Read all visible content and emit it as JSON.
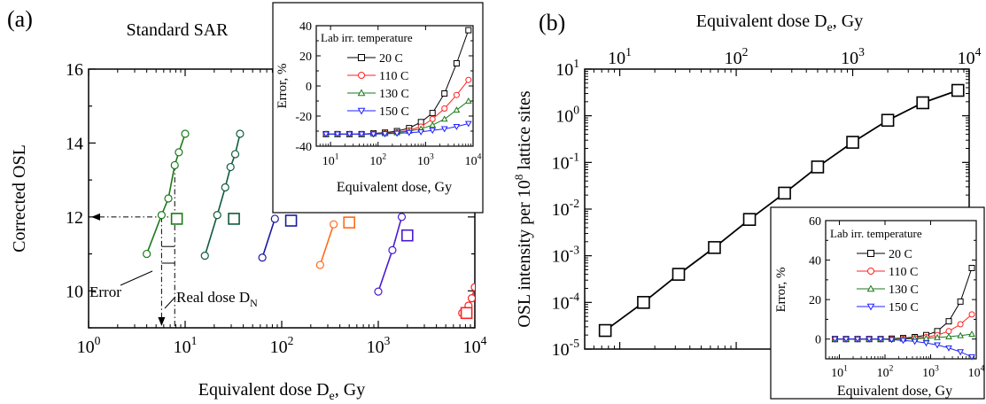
{
  "panel_a": {
    "label": "(a)",
    "title": "Standard SAR",
    "xlabel": "Equivalent dose D",
    "xlabel_sub": "e",
    "xlabel_unit": ", Gy",
    "ylabel": "Corrected OSL",
    "annotations": {
      "error": "Error",
      "real_dose": "Real dose D",
      "real_dose_sub": "N"
    }
  },
  "panel_b": {
    "label": "(b)",
    "top_xlabel": "Equivalent dose D",
    "top_xlabel_sub": "e",
    "top_xlabel_unit": ", Gy",
    "ylabel_pre": "OSL intensity per 10",
    "ylabel_sup": "8",
    "ylabel_post": " lattice sites"
  },
  "inset_a": {
    "legend_title": "Lab irr. temperature",
    "xlabel": "Equivalent dose, Gy",
    "ylabel": "Error, %"
  },
  "inset_b": {
    "legend_title": "Lab irr. temperature",
    "xlabel": "Equivalent dose, Gy",
    "ylabel": "Error, %"
  },
  "colors": {
    "20 C": "#000000",
    "110 C": "#ff2020",
    "130 C": "#1a7a1a",
    "150 C": "#2020ff",
    "dark_green": "#0f5a3c",
    "navy": "#1a1aa0",
    "orange": "#ff6a1a",
    "violet": "#4a1ad0",
    "red": "#ff2020"
  },
  "chart_data": [
    {
      "id": "a",
      "type": "line",
      "title": "Standard SAR",
      "xlabel": "Equivalent dose De, Gy",
      "ylabel": "Corrected OSL",
      "xscale": "log",
      "xlim": [
        1,
        10000
      ],
      "ylim": [
        9,
        16
      ],
      "xticks": [
        1,
        10,
        100,
        1000,
        10000
      ],
      "yticks": [
        10,
        12,
        14,
        16
      ],
      "series": [
        {
          "color": "#1a7a1a",
          "x": [
            4,
            5.7,
            6.7,
            7.8,
            8.6,
            10
          ],
          "y": [
            11.0,
            12.05,
            12.5,
            13.4,
            13.75,
            14.25
          ]
        },
        {
          "color": "#0f5a3c",
          "x": [
            16,
            21.5,
            26,
            29.5,
            33,
            37
          ],
          "y": [
            10.95,
            12.05,
            12.8,
            13.35,
            13.7,
            14.25
          ]
        },
        {
          "color": "#1a1aa0",
          "x": [
            63,
            85
          ],
          "y": [
            10.9,
            11.95
          ]
        },
        {
          "color": "#ff6a1a",
          "x": [
            250,
            345
          ],
          "y": [
            10.7,
            11.8
          ]
        },
        {
          "color": "#4a1ad0",
          "x": [
            1000,
            1400,
            1750
          ],
          "y": [
            9.98,
            11.1,
            12.0
          ]
        },
        {
          "color": "#ff2020",
          "x": [
            7400,
            8600,
            9300,
            10000
          ],
          "y": [
            9.4,
            9.6,
            9.8,
            10.1
          ]
        }
      ],
      "squares": [
        {
          "color": "#1a7a1a",
          "x": 8.2,
          "y": 11.95
        },
        {
          "color": "#0f5a3c",
          "x": 32,
          "y": 11.95
        },
        {
          "color": "#1a1aa0",
          "x": 125,
          "y": 11.9
        },
        {
          "color": "#ff6a1a",
          "x": 500,
          "y": 11.85
        },
        {
          "color": "#4a1ad0",
          "x": 2000,
          "y": 11.5
        },
        {
          "color": "#ff2020",
          "x": 8200,
          "y": 9.4
        }
      ],
      "guides": {
        "y_level": 12.0,
        "x_measured": 5.7,
        "x_real": 7.8,
        "bracket_y_top": 11.2,
        "bracket_y_bottom": 10.75
      }
    },
    {
      "id": "a-inset",
      "type": "line",
      "xlabel": "Equivalent dose, Gy",
      "ylabel": "Error, %",
      "xscale": "log",
      "xlim": [
        5,
        10000
      ],
      "ylim": [
        -40,
        40
      ],
      "xticks": [
        10,
        100,
        1000,
        10000
      ],
      "yticks": [
        -40,
        -30,
        -20,
        -10,
        0,
        10,
        20,
        30,
        40
      ],
      "legend": "top-left",
      "series": [
        {
          "name": "20 C",
          "marker": "square",
          "x": [
            8,
            14,
            25,
            45,
            80,
            140,
            250,
            450,
            800,
            1400,
            2500,
            4500,
            8000
          ],
          "y": [
            -32,
            -32,
            -32,
            -32,
            -31.5,
            -31,
            -30,
            -28,
            -24,
            -18,
            -5,
            15,
            37
          ]
        },
        {
          "name": "110 C",
          "marker": "circle",
          "x": [
            8,
            14,
            25,
            45,
            80,
            140,
            250,
            450,
            800,
            1400,
            2500,
            4500,
            8000
          ],
          "y": [
            -32,
            -32,
            -32,
            -32,
            -31.8,
            -31.5,
            -30.8,
            -29.5,
            -27,
            -22,
            -15,
            -6,
            4
          ]
        },
        {
          "name": "130 C",
          "marker": "triangle-up",
          "x": [
            8,
            14,
            25,
            45,
            80,
            140,
            250,
            450,
            800,
            1400,
            2500,
            4500,
            8000
          ],
          "y": [
            -32,
            -32,
            -32,
            -32,
            -31.8,
            -31.6,
            -31,
            -30,
            -28.5,
            -26,
            -22,
            -16,
            -10
          ]
        },
        {
          "name": "150 C",
          "marker": "triangle-down",
          "x": [
            8,
            14,
            25,
            45,
            80,
            140,
            250,
            450,
            800,
            1400,
            2500,
            4500,
            8000
          ],
          "y": [
            -32,
            -32,
            -32,
            -32,
            -32,
            -31.8,
            -31.5,
            -31,
            -30.5,
            -29.5,
            -28.5,
            -27,
            -25
          ]
        }
      ]
    },
    {
      "id": "b",
      "type": "line",
      "xlabel": "Equivalent dose De, Gy",
      "ylabel": "OSL intensity per 10^8 lattice sites",
      "xscale": "log",
      "yscale": "log",
      "xlim": [
        5,
        10000
      ],
      "ylim": [
        1e-05,
        10
      ],
      "xticks": [
        10,
        100,
        1000,
        10000
      ],
      "yticks": [
        1e-05,
        0.0001,
        0.001,
        0.01,
        0.1,
        1,
        10
      ],
      "series": [
        {
          "marker": "square",
          "x": [
            7.5,
            16,
            32,
            65,
            130,
            260,
            500,
            1000,
            2000,
            4000,
            8000
          ],
          "y": [
            2.5e-05,
            0.0001,
            0.0004,
            0.0015,
            0.006,
            0.022,
            0.08,
            0.27,
            0.8,
            1.9,
            3.5
          ]
        }
      ]
    },
    {
      "id": "b-inset",
      "type": "line",
      "xlabel": "Equivalent dose, Gy",
      "ylabel": "Error, %",
      "xscale": "log",
      "xlim": [
        5,
        10000
      ],
      "ylim": [
        -10,
        60
      ],
      "xticks": [
        10,
        100,
        1000,
        10000
      ],
      "yticks": [
        0,
        20,
        40,
        60
      ],
      "legend": "top-left",
      "series": [
        {
          "name": "20 C",
          "marker": "square",
          "x": [
            8,
            14,
            25,
            45,
            80,
            140,
            250,
            450,
            800,
            1400,
            2500,
            4500,
            8000
          ],
          "y": [
            0,
            0,
            0,
            0,
            0,
            0.2,
            0.5,
            1,
            2,
            4,
            9,
            19,
            36
          ]
        },
        {
          "name": "110 C",
          "marker": "circle",
          "x": [
            8,
            14,
            25,
            45,
            80,
            140,
            250,
            450,
            800,
            1400,
            2500,
            4500,
            8000
          ],
          "y": [
            0,
            0,
            0,
            0,
            0,
            0,
            0.2,
            0.5,
            1,
            2,
            4,
            7.5,
            12.5
          ]
        },
        {
          "name": "130 C",
          "marker": "triangle-up",
          "x": [
            8,
            14,
            25,
            45,
            80,
            140,
            250,
            450,
            800,
            1400,
            2500,
            4500,
            8000
          ],
          "y": [
            0,
            0,
            0,
            0,
            0,
            0,
            0,
            0.2,
            0.4,
            0.8,
            1.2,
            1.8,
            2.5
          ]
        },
        {
          "name": "150 C",
          "marker": "triangle-down",
          "x": [
            8,
            14,
            25,
            45,
            80,
            140,
            250,
            450,
            800,
            1400,
            2500,
            4500,
            8000
          ],
          "y": [
            0,
            0,
            0,
            0,
            0,
            -0.3,
            -0.7,
            -1.2,
            -2,
            -3,
            -4.5,
            -6.5,
            -9
          ]
        }
      ]
    }
  ]
}
